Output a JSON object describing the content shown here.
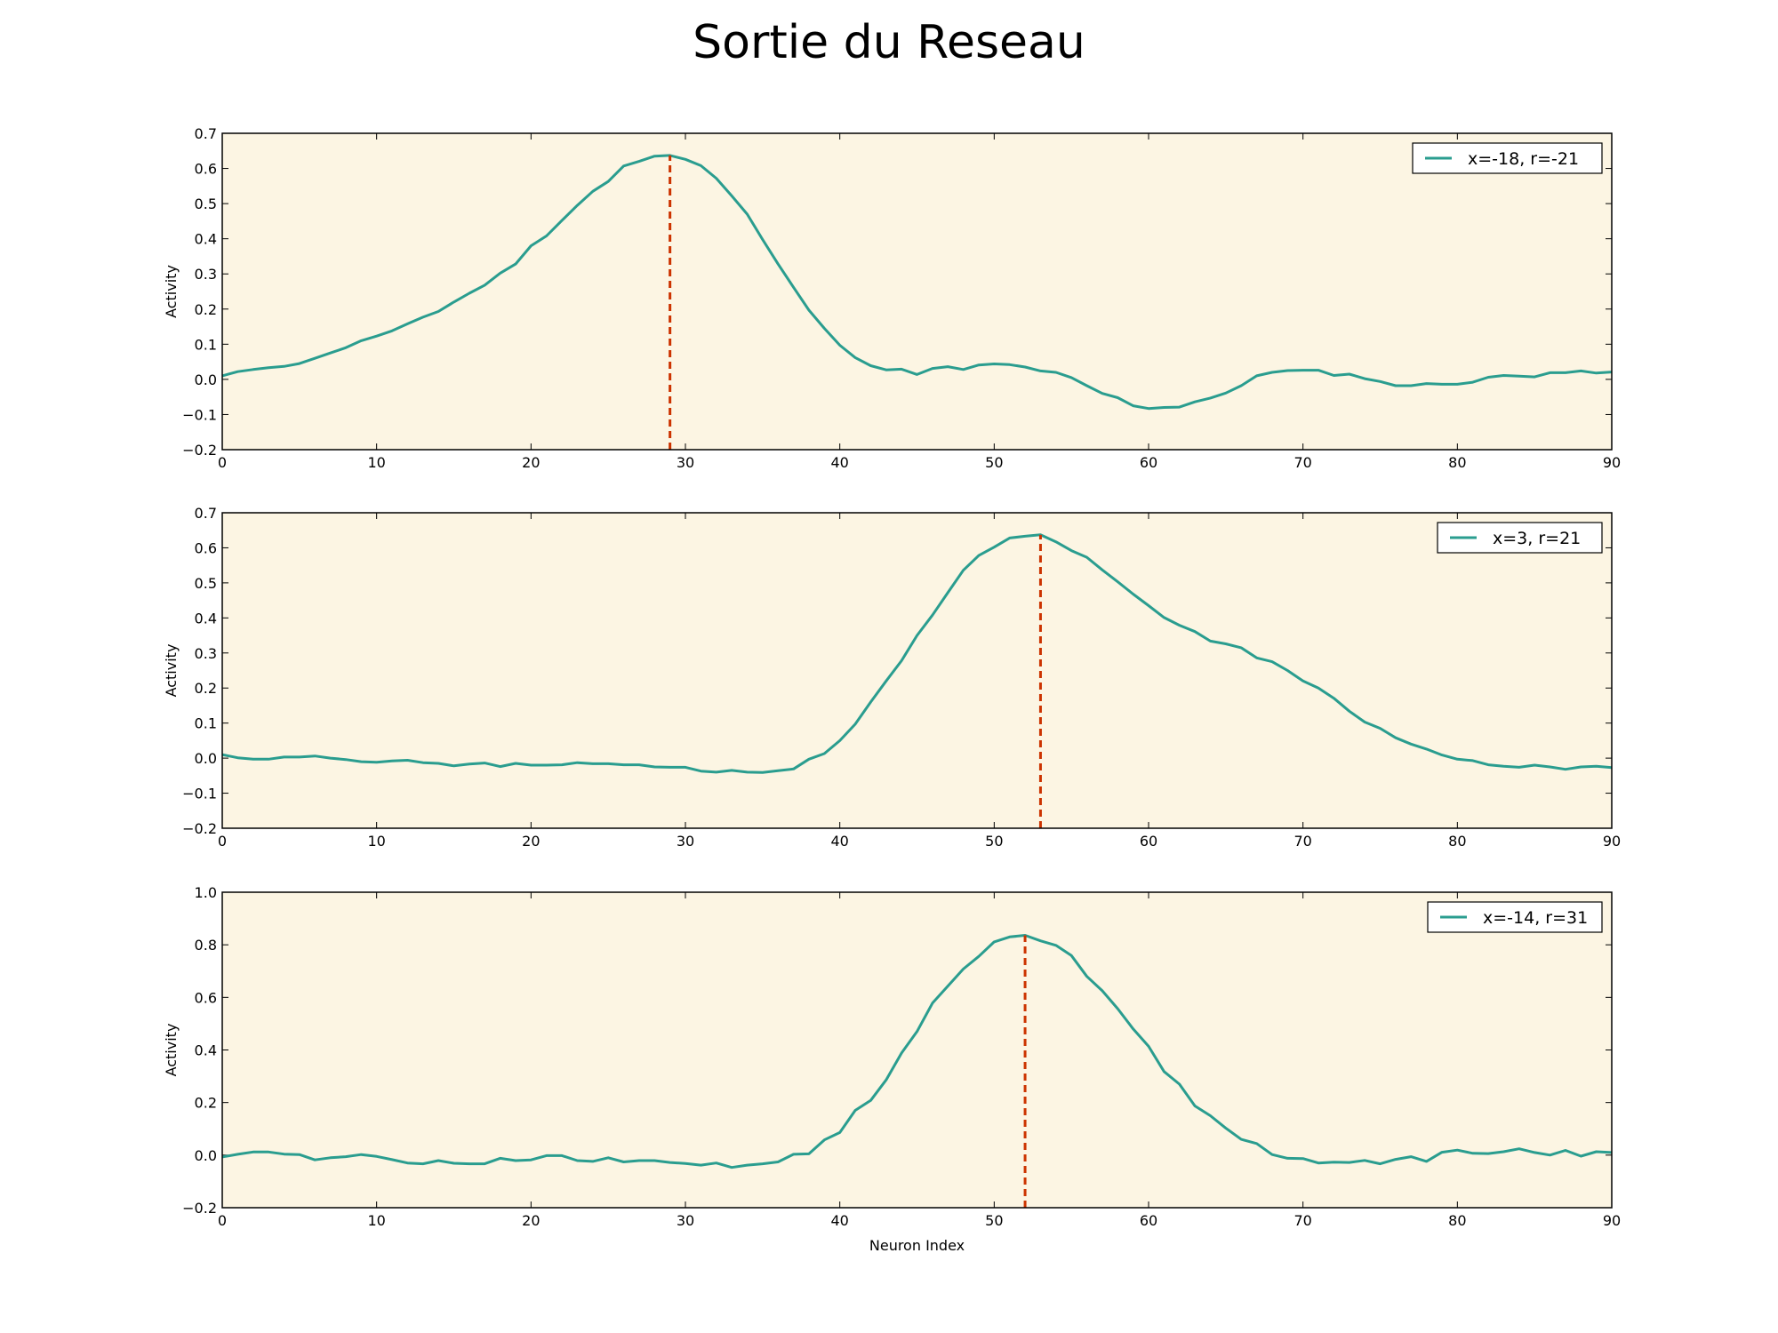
{
  "title": "Sortie du Reseau",
  "colors": {
    "line": "#2a9d8f",
    "marker": "#cc3300",
    "plot_background": "#fcf5e3"
  },
  "chart_data": [
    {
      "type": "line",
      "title": "",
      "xlabel": "",
      "ylabel": "Activity",
      "xlim": [
        0,
        90
      ],
      "ylim": [
        -0.2,
        0.7
      ],
      "xticks": [
        0,
        10,
        20,
        30,
        40,
        50,
        60,
        70,
        80,
        90
      ],
      "yticks": [
        -0.2,
        -0.1,
        0.0,
        0.1,
        0.2,
        0.3,
        0.4,
        0.5,
        0.6,
        0.7
      ],
      "xtick_labels": [
        "0",
        "10",
        "20",
        "30",
        "40",
        "50",
        "60",
        "70",
        "80",
        "90"
      ],
      "ytick_labels": [
        "−0.2",
        "−0.1",
        "0.0",
        "0.1",
        "0.2",
        "0.3",
        "0.4",
        "0.5",
        "0.6",
        "0.7"
      ],
      "legend_position": "top-right",
      "grid": false,
      "series": [
        {
          "name": "x=-18, r=-21",
          "values": [
            0.01,
            0.022,
            0.028,
            0.033,
            0.037,
            0.045,
            0.06,
            0.075,
            0.09,
            0.11,
            0.123,
            0.138,
            0.158,
            0.177,
            0.193,
            0.22,
            0.245,
            0.268,
            0.302,
            0.328,
            0.38,
            0.408,
            0.452,
            0.495,
            0.535,
            0.563,
            0.607,
            0.62,
            0.635,
            0.637,
            0.626,
            0.608,
            0.572,
            0.522,
            0.47,
            0.398,
            0.328,
            0.262,
            0.197,
            0.145,
            0.097,
            0.062,
            0.039,
            0.027,
            0.029,
            0.014,
            0.031,
            0.036,
            0.028,
            0.041,
            0.044,
            0.042,
            0.035,
            0.024,
            0.02,
            0.005,
            -0.018,
            -0.04,
            -0.052,
            -0.075,
            -0.083,
            -0.08,
            -0.079,
            -0.064,
            -0.053,
            -0.039,
            -0.018,
            0.01,
            0.02,
            0.025,
            0.026,
            0.026,
            0.011,
            0.015,
            0.002,
            -0.006,
            -0.018,
            -0.018,
            -0.012,
            -0.014,
            -0.014,
            -0.008,
            0.006,
            0.011,
            0.009,
            0.007,
            0.019,
            0.019,
            0.024,
            0.018,
            0.021
          ]
        }
      ],
      "marker_x": 29
    },
    {
      "type": "line",
      "title": "",
      "xlabel": "",
      "ylabel": "Activity",
      "xlim": [
        0,
        90
      ],
      "ylim": [
        -0.2,
        0.7
      ],
      "xticks": [
        0,
        10,
        20,
        30,
        40,
        50,
        60,
        70,
        80,
        90
      ],
      "yticks": [
        -0.2,
        -0.1,
        0.0,
        0.1,
        0.2,
        0.3,
        0.4,
        0.5,
        0.6,
        0.7
      ],
      "xtick_labels": [
        "0",
        "10",
        "20",
        "30",
        "40",
        "50",
        "60",
        "70",
        "80",
        "90"
      ],
      "ytick_labels": [
        "−0.2",
        "−0.1",
        "0.0",
        "0.1",
        "0.2",
        "0.3",
        "0.4",
        "0.5",
        "0.6",
        "0.7"
      ],
      "legend_position": "top-right",
      "grid": false,
      "series": [
        {
          "name": "x=3, r=21",
          "values": [
            0.01,
            0.001,
            -0.003,
            -0.003,
            0.003,
            0.003,
            0.006,
            0.0,
            -0.004,
            -0.01,
            -0.012,
            -0.008,
            -0.006,
            -0.013,
            -0.015,
            -0.022,
            -0.017,
            -0.014,
            -0.024,
            -0.015,
            -0.02,
            -0.02,
            -0.019,
            -0.013,
            -0.016,
            -0.016,
            -0.019,
            -0.019,
            -0.025,
            -0.026,
            -0.026,
            -0.037,
            -0.04,
            -0.035,
            -0.04,
            -0.041,
            -0.036,
            -0.031,
            -0.003,
            0.013,
            0.05,
            0.097,
            0.16,
            0.22,
            0.278,
            0.35,
            0.408,
            0.472,
            0.536,
            0.578,
            0.602,
            0.628,
            0.633,
            0.637,
            0.617,
            0.592,
            0.573,
            0.537,
            0.503,
            0.468,
            0.435,
            0.401,
            0.379,
            0.361,
            0.334,
            0.326,
            0.315,
            0.286,
            0.275,
            0.25,
            0.22,
            0.2,
            0.171,
            0.134,
            0.103,
            0.085,
            0.058,
            0.04,
            0.026,
            0.009,
            -0.003,
            -0.007,
            -0.019,
            -0.023,
            -0.026,
            -0.02,
            -0.025,
            -0.032,
            -0.025,
            -0.023,
            -0.027
          ]
        }
      ],
      "marker_x": 53
    },
    {
      "type": "line",
      "title": "",
      "xlabel": "Neuron Index",
      "ylabel": "Activity",
      "xlim": [
        0,
        90
      ],
      "ylim": [
        -0.2,
        1.0
      ],
      "xticks": [
        0,
        10,
        20,
        30,
        40,
        50,
        60,
        70,
        80,
        90
      ],
      "yticks": [
        -0.2,
        0.0,
        0.2,
        0.4,
        0.6,
        0.8,
        1.0
      ],
      "xtick_labels": [
        "0",
        "10",
        "20",
        "30",
        "40",
        "50",
        "60",
        "70",
        "80",
        "90"
      ],
      "ytick_labels": [
        "−0.2",
        "0.0",
        "0.2",
        "0.4",
        "0.6",
        "0.8",
        "1.0"
      ],
      "legend_position": "top-right",
      "grid": false,
      "series": [
        {
          "name": "x=-14, r=31",
          "values": [
            -0.007,
            0.003,
            0.012,
            0.012,
            0.004,
            0.002,
            -0.018,
            -0.01,
            -0.006,
            0.002,
            -0.005,
            -0.017,
            -0.03,
            -0.033,
            -0.021,
            -0.031,
            -0.033,
            -0.033,
            -0.012,
            -0.021,
            -0.018,
            -0.002,
            -0.002,
            -0.021,
            -0.024,
            -0.01,
            -0.026,
            -0.021,
            -0.021,
            -0.028,
            -0.032,
            -0.038,
            -0.03,
            -0.047,
            -0.038,
            -0.033,
            -0.026,
            0.003,
            0.005,
            0.058,
            0.086,
            0.17,
            0.208,
            0.286,
            0.388,
            0.47,
            0.578,
            0.643,
            0.708,
            0.756,
            0.811,
            0.83,
            0.836,
            0.815,
            0.798,
            0.759,
            0.68,
            0.625,
            0.557,
            0.48,
            0.414,
            0.318,
            0.27,
            0.187,
            0.15,
            0.103,
            0.06,
            0.044,
            0.002,
            -0.012,
            -0.013,
            -0.03,
            -0.027,
            -0.028,
            -0.02,
            -0.033,
            -0.016,
            -0.006,
            -0.024,
            0.011,
            0.019,
            0.007,
            0.006,
            0.013,
            0.024,
            0.01,
            0.0,
            0.018,
            -0.004,
            0.013,
            0.01
          ]
        }
      ],
      "marker_x": 52
    }
  ]
}
